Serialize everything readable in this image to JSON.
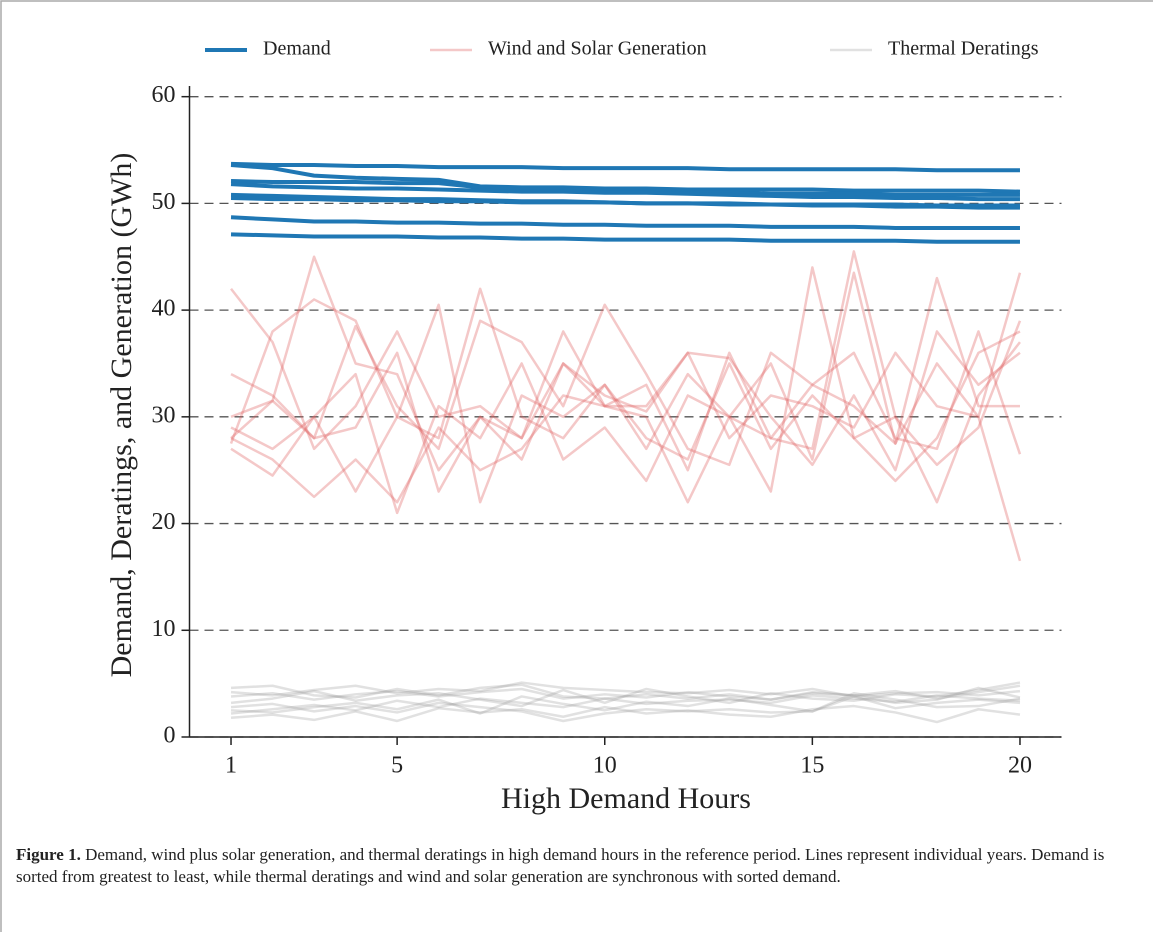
{
  "chart_data": {
    "type": "line",
    "x_label": "High Demand Hours",
    "y_label": "Demand, Deratings, and Generation (GWh)",
    "x": [
      1,
      2,
      3,
      4,
      5,
      6,
      7,
      8,
      9,
      10,
      11,
      12,
      13,
      14,
      15,
      16,
      17,
      18,
      19,
      20
    ],
    "xlim": [
      0,
      21
    ],
    "xticks": [
      1,
      5,
      10,
      15,
      20
    ],
    "ylim": [
      0,
      61
    ],
    "yticks": [
      0,
      10,
      20,
      30,
      40,
      50,
      60
    ],
    "grid": true,
    "legend": "top",
    "series": [
      {
        "name": "Demand",
        "color": "#1f77b4",
        "alpha": 1,
        "values": [
          [
            53.7,
            53.6,
            53.6,
            53.5,
            53.5,
            53.4,
            53.4,
            53.4,
            53.3,
            53.3,
            53.3,
            53.3,
            53.2,
            53.2,
            53.2,
            53.2,
            53.2,
            53.1,
            53.1,
            53.1
          ],
          [
            53.6,
            53.3,
            52.6,
            52.4,
            52.3,
            52.2,
            51.6,
            51.5,
            51.5,
            51.4,
            51.4,
            51.3,
            51.3,
            51.3,
            51.3,
            51.2,
            51.2,
            51.2,
            51.2,
            51.1
          ],
          [
            52.1,
            52.0,
            52.0,
            52.0,
            51.9,
            51.9,
            51.5,
            51.3,
            51.3,
            51.2,
            51.1,
            51.0,
            51.0,
            50.9,
            50.9,
            50.9,
            50.8,
            50.8,
            50.8,
            50.8
          ],
          [
            51.8,
            51.6,
            51.5,
            51.4,
            51.4,
            51.3,
            51.2,
            51.1,
            51.1,
            51.0,
            51.0,
            50.9,
            50.8,
            50.7,
            50.6,
            50.6,
            50.5,
            50.5,
            50.4,
            50.4
          ],
          [
            50.8,
            50.7,
            50.6,
            50.5,
            50.4,
            50.4,
            50.3,
            50.2,
            50.2,
            50.1,
            50.0,
            50.0,
            49.9,
            49.9,
            49.8,
            49.8,
            49.7,
            49.7,
            49.6,
            49.6
          ],
          [
            50.5,
            50.4,
            50.4,
            50.3,
            50.3,
            50.2,
            50.2,
            50.1,
            50.1,
            50.1,
            50.0,
            50.0,
            50.0,
            49.9,
            49.9,
            49.9,
            49.9,
            49.8,
            49.8,
            49.8
          ],
          [
            48.7,
            48.5,
            48.3,
            48.3,
            48.2,
            48.2,
            48.1,
            48.1,
            48.0,
            48.0,
            47.9,
            47.9,
            47.9,
            47.8,
            47.8,
            47.8,
            47.7,
            47.7,
            47.7,
            47.7
          ],
          [
            47.1,
            47.0,
            46.9,
            46.9,
            46.9,
            46.8,
            46.8,
            46.7,
            46.7,
            46.6,
            46.6,
            46.6,
            46.6,
            46.5,
            46.5,
            46.5,
            46.5,
            46.4,
            46.4,
            46.4
          ]
        ]
      },
      {
        "name": "Wind and Solar Generation",
        "color": "#e06060",
        "alpha": 0.35,
        "values": [
          [
            42,
            37,
            27,
            31,
            38,
            30,
            31,
            28,
            35,
            31,
            33,
            25,
            36,
            28,
            33,
            36,
            28,
            27,
            38,
            26.5
          ],
          [
            27.5,
            38,
            41,
            39,
            30,
            28,
            42,
            30,
            28,
            33,
            27,
            34,
            30,
            35,
            26,
            43.5,
            27.5,
            35,
            30,
            43.5
          ],
          [
            34,
            32,
            28,
            38.5,
            31,
            27,
            39,
            37,
            31,
            40.5,
            34,
            27,
            25.5,
            36,
            33,
            31,
            27.5,
            43,
            31,
            31
          ],
          [
            28,
            31.5,
            45,
            35,
            34,
            25,
            30,
            28,
            38,
            31,
            31,
            36,
            28,
            32,
            31,
            29,
            36,
            31,
            30,
            16.5
          ],
          [
            27,
            24.5,
            30,
            34,
            21,
            31,
            28,
            35,
            26,
            29,
            24,
            32,
            30,
            23,
            44,
            28,
            30,
            22,
            32,
            37
          ],
          [
            28,
            26,
            22.5,
            26,
            22,
            29,
            25,
            27,
            32,
            31,
            30,
            22,
            30,
            28,
            27,
            45.5,
            30,
            25.5,
            29,
            39
          ],
          [
            30,
            31.5,
            28,
            29,
            36,
            23,
            30,
            26,
            35,
            32,
            30.5,
            36,
            35.5,
            30,
            25.5,
            32,
            25,
            38,
            33,
            36
          ],
          [
            29,
            27,
            30,
            23,
            30,
            40.5,
            22,
            32,
            30,
            33,
            28,
            26,
            35,
            27,
            32,
            28,
            24,
            28,
            36,
            38
          ]
        ]
      },
      {
        "name": "Thermal Deratings",
        "color": "#9a9a9a",
        "alpha": 0.3,
        "values": [
          [
            3.8,
            4.1,
            3.5,
            4,
            4.3,
            3.8,
            4.2,
            4.5,
            3.6,
            4,
            3.7,
            4.2,
            3.8,
            3.5,
            4.1,
            3.9,
            4.3,
            3.6,
            4.2,
            4.8
          ],
          [
            2.5,
            2.3,
            2.8,
            3.2,
            2.6,
            3.5,
            2.2,
            3.8,
            3.1,
            2.5,
            3.3,
            2.9,
            3.6,
            3,
            2.4,
            3.8,
            2.7,
            3.2,
            3.5,
            3.2
          ],
          [
            3.2,
            3.6,
            4.3,
            3.4,
            3.9,
            4.1,
            3.5,
            2.9,
            4.4,
            3.2,
            4.5,
            3.8,
            3.2,
            4.1,
            3.6,
            3.4,
            4,
            3.8,
            4.4,
            5.1
          ],
          [
            1.8,
            2.1,
            1.6,
            2.4,
            1.5,
            2.7,
            2.3,
            2.6,
            1.9,
            2.8,
            2.2,
            2.5,
            2.1,
            1.9,
            2.6,
            2.9,
            2.3,
            1.4,
            2.6,
            2.1
          ],
          [
            2.2,
            2.6,
            3,
            2.5,
            3.4,
            2.8,
            3.6,
            3.2,
            2.8,
            3.6,
            3.1,
            3.4,
            3.5,
            3.2,
            3.9,
            3.6,
            3.3,
            3.9,
            3.6,
            3.4
          ],
          [
            4.2,
            3.9,
            4.4,
            4.8,
            4.1,
            4.5,
            4.3,
            5.1,
            4.6,
            4.4,
            4.2,
            4.1,
            4.4,
            4,
            4.5,
            3.8,
            4.1,
            4.2,
            3.9,
            4.3
          ],
          [
            2.8,
            3.1,
            2.4,
            2.9,
            2.3,
            3.2,
            2.8,
            2.4,
            1.5,
            2.2,
            2.6,
            2.4,
            2.6,
            2.3,
            2.4,
            4.1,
            3.5,
            2.8,
            2.9,
            3.6
          ],
          [
            4.6,
            4.8,
            3.9,
            3.7,
            4.5,
            3.9,
            4.6,
            4.9,
            3.8,
            3.6,
            4,
            3.6,
            4,
            3.5,
            4.2,
            3.9,
            3.2,
            3.5,
            4.6,
            3.7
          ]
        ]
      }
    ]
  },
  "caption": {
    "label": "Figure 1.",
    "text": " Demand, wind plus solar generation, and thermal deratings in high demand hours in the reference period. Lines represent individual years. Demand is sorted from greatest to least, while thermal deratings and wind and solar generation are synchronous with sorted demand."
  }
}
